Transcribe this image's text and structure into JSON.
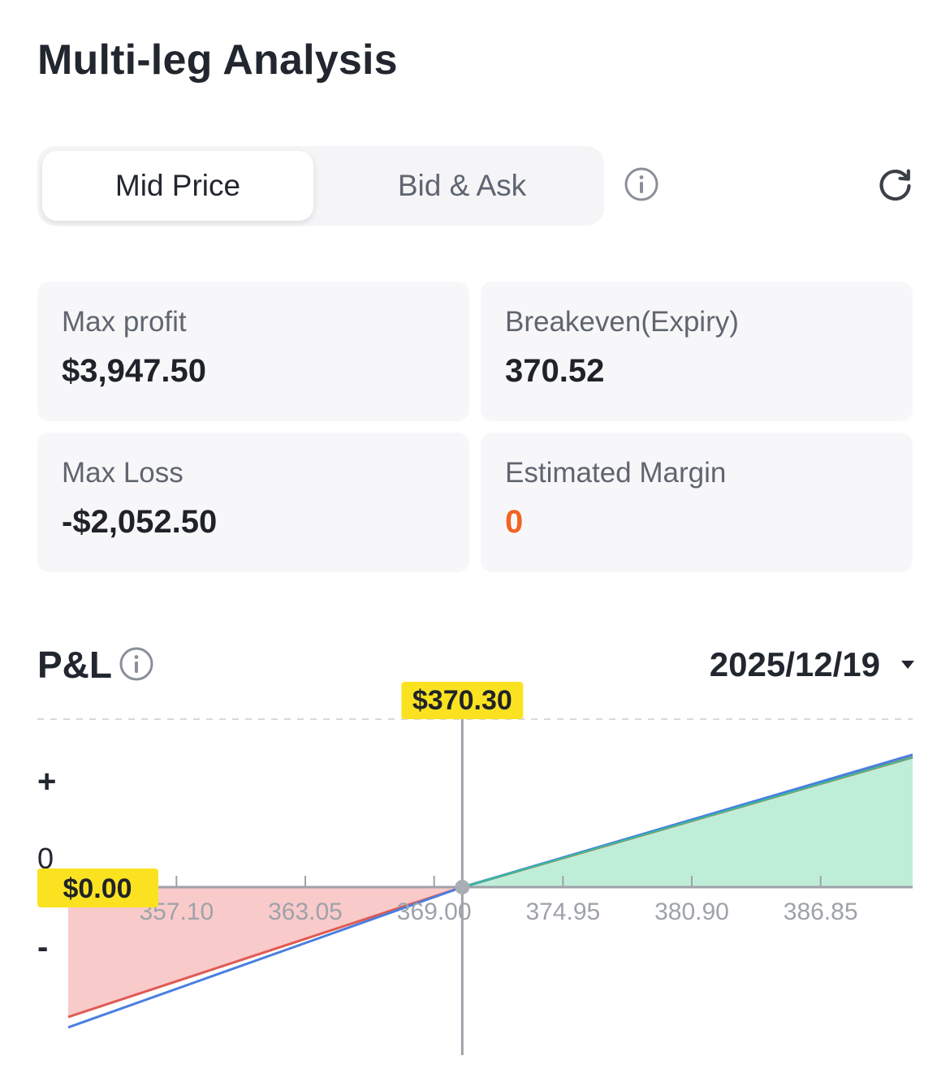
{
  "header": {
    "title": "Multi-leg Analysis"
  },
  "price_mode": {
    "options": [
      "Mid Price",
      "Bid & Ask"
    ],
    "selected": "Mid Price",
    "info_icon": "info-icon",
    "refresh_icon": "refresh-icon"
  },
  "metrics": [
    {
      "label": "Max profit",
      "value": "$3,947.50",
      "color": "#1f2329"
    },
    {
      "label": "Breakeven(Expiry)",
      "value": "370.52",
      "color": "#1f2329"
    },
    {
      "label": "Max Loss",
      "value": "-$2,052.50",
      "color": "#1f2329"
    },
    {
      "label": "Estimated Margin",
      "value": "0",
      "color": "#f26322"
    }
  ],
  "pnl": {
    "title": "P&L",
    "info_icon": "info-icon",
    "expiry_date": "2025/12/19",
    "dropdown_icon": "caret-down-icon",
    "y_axis_labels": {
      "plus": "+",
      "zero": "0",
      "minus": "-"
    },
    "current_price_label": "$370.30",
    "pnl_at_price_label": "$0.00"
  },
  "chart_data": {
    "type": "line",
    "x_ticks": [
      357.1,
      363.05,
      369.0,
      374.95,
      380.9,
      386.85
    ],
    "x_tick_labels": [
      "357.10",
      "363.05",
      "369.00",
      "374.95",
      "380.90",
      "386.85"
    ],
    "xlim": [
      352.1,
      391.1
    ],
    "current_price": 370.3,
    "pnl_at_current_price": 0.0,
    "breakeven": 370.52,
    "series": [
      {
        "x": [
          352.1,
          370.3,
          391.1
        ],
        "y": [
          -1.0,
          0.0,
          1.0
        ],
        "color": "#e05a52",
        "style": "expiry"
      },
      {
        "x": [
          352.1,
          370.3,
          391.1
        ],
        "y": [
          -1.08,
          0.0,
          1.02
        ],
        "color": "#4a7fe0",
        "style": "today"
      }
    ],
    "fill_colors": {
      "profit": "#bfeed8",
      "loss": "#f9caca"
    },
    "label_bg": "#fbe221",
    "grid": false
  }
}
